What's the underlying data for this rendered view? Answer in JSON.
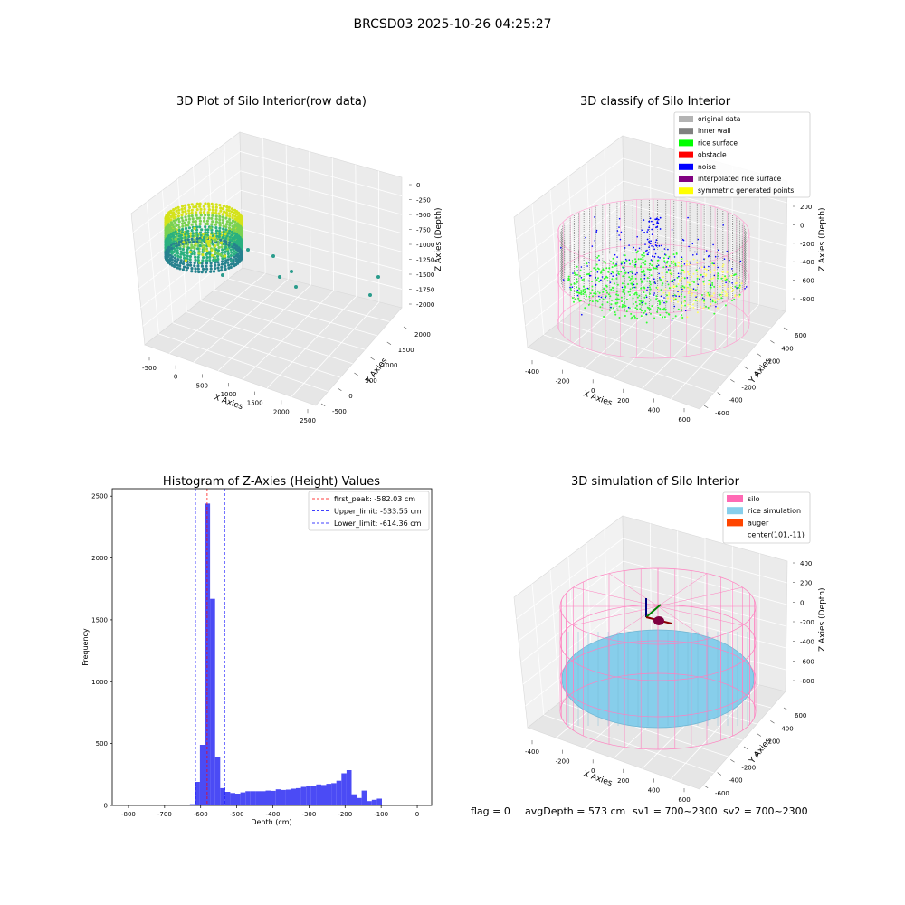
{
  "suptitle": "BRCSD03 2025-10-26 04:25:27",
  "footer": {
    "flag": "flag = 0",
    "avg": "avgDepth = 573 cm",
    "sv1": "sv1 = 700~2300",
    "sv2": "sv2 = 700~2300"
  },
  "chart_data": [
    {
      "type": "scatter",
      "subtype": "3d-scatter",
      "title": "3D Plot of Silo Interior(row data)",
      "xlabel": "X Axies",
      "ylabel": "Y Axies",
      "zlabel": "Z Axies (Depth)",
      "xticks": [
        "-500",
        "0",
        "500",
        "1000",
        "1500",
        "2000",
        "2500"
      ],
      "yticks": [
        "-500",
        "0",
        "500",
        "1000",
        "1500",
        "2000"
      ],
      "zticks": [
        "0",
        "-250",
        "-500",
        "-750",
        "-1000",
        "-1250",
        "-1500",
        "-1750",
        "-2000"
      ],
      "colormap": [
        "#d4e21a",
        "#7ad151",
        "#2ab07f",
        "#26828e"
      ],
      "outliers": [
        {
          "x": 900,
          "y": 500,
          "z": -1500
        },
        {
          "x": 1300,
          "y": 300,
          "z": -1650
        },
        {
          "x": 1050,
          "y": 100,
          "z": -1700
        },
        {
          "x": 2500,
          "y": 700,
          "z": -1800
        },
        {
          "x": 2400,
          "y": 1600,
          "z": -1750
        },
        {
          "x": 1400,
          "y": 1200,
          "z": -1300
        }
      ]
    },
    {
      "type": "scatter",
      "subtype": "3d-scatter",
      "title": "3D classify of Silo Interior",
      "xlabel": "X Axies",
      "ylabel": "Y Axies",
      "zlabel": "Z Axies (Depth)",
      "xticks": [
        "-400",
        "-200",
        "0",
        "200",
        "400",
        "600"
      ],
      "yticks": [
        "-600",
        "-400",
        "-200",
        "0",
        "200",
        "400",
        "600"
      ],
      "zticks": [
        "200",
        "0",
        "-200",
        "-400",
        "-600",
        "-800"
      ],
      "legend": [
        {
          "label": "original data",
          "color": "#b3b3b3"
        },
        {
          "label": "inner wall",
          "color": "#808080"
        },
        {
          "label": "rice surface",
          "color": "#00ff00"
        },
        {
          "label": "obstacle",
          "color": "#ff0000"
        },
        {
          "label": "noise",
          "color": "#0000ff"
        },
        {
          "label": "interpolated rice surface",
          "color": "#800080"
        },
        {
          "label": "symmetric generated points",
          "color": "#ffff00"
        }
      ]
    },
    {
      "type": "bar",
      "subtype": "histogram",
      "title": "Histogram of Z-Axies (Height) Values",
      "xlabel": "Depth (cm)",
      "ylabel": "Frequency",
      "xlim": [
        -845,
        40
      ],
      "ylim": [
        0,
        2560
      ],
      "xticks": [
        -800,
        -700,
        -600,
        -500,
        -400,
        -300,
        -200,
        -100,
        0
      ],
      "yticks": [
        0,
        500,
        1000,
        1500,
        2000,
        2500
      ],
      "bar_color": "#4b4bf5",
      "bin_start": -630,
      "bin_width": 14,
      "values": [
        10,
        190,
        490,
        2440,
        1670,
        390,
        140,
        110,
        100,
        95,
        105,
        115,
        115,
        115,
        115,
        120,
        118,
        130,
        125,
        128,
        135,
        140,
        150,
        155,
        160,
        170,
        165,
        175,
        180,
        200,
        260,
        285,
        90,
        60,
        120,
        35,
        45,
        55
      ],
      "vlines": [
        {
          "label": "first_peak: -582.03 cm",
          "x": -582.03,
          "color": "#ff0000"
        },
        {
          "label": "Upper_limit: -533.55 cm",
          "x": -533.55,
          "color": "#0000ff"
        },
        {
          "label": "Lower_limit: -614.36 cm",
          "x": -614.36,
          "color": "#0000ff"
        }
      ]
    },
    {
      "type": "scatter",
      "subtype": "3d-surface",
      "title": "3D simulation of Silo Interior",
      "xlabel": "X Axies",
      "ylabel": "Y Axies",
      "zlabel": "Z Axies (Depth)",
      "xticks": [
        "-400",
        "-200",
        "0",
        "200",
        "400",
        "600"
      ],
      "yticks": [
        "-600",
        "-400",
        "-200",
        "0",
        "200",
        "400",
        "600"
      ],
      "zticks": [
        "400",
        "200",
        "0",
        "-200",
        "-400",
        "-600",
        "-800"
      ],
      "legend": [
        {
          "label": "silo",
          "color": "#ff69b4"
        },
        {
          "label": "rice simulation",
          "color": "#87ceeb"
        },
        {
          "label": "auger",
          "color": "#ff4500"
        },
        {
          "label": "center(101,-11)",
          "color": ""
        }
      ]
    }
  ]
}
